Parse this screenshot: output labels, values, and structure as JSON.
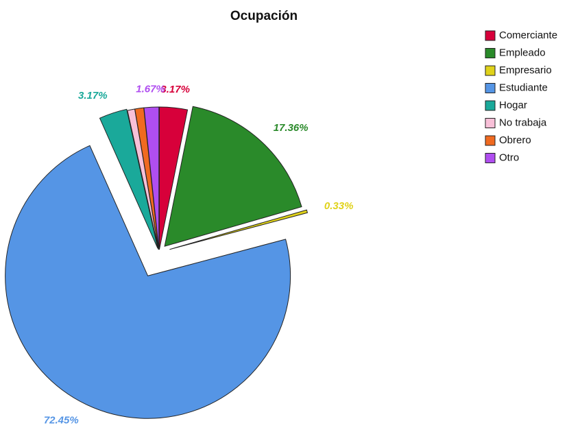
{
  "chart_data": {
    "type": "pie",
    "title": "Ocupación",
    "categories": [
      "Comerciante",
      "Empleado",
      "Empresario",
      "Estudiante",
      "Hogar",
      "No trabaja",
      "Obrero",
      "Otro"
    ],
    "values": [
      3.17,
      17.36,
      0.33,
      72.45,
      3.17,
      0.83,
      1.0,
      1.67
    ],
    "value_labels": [
      "3.17%",
      "17.36%",
      "0.33%",
      "72.45%",
      "3.17%",
      null,
      null,
      "1.67%"
    ],
    "colors": [
      "#d7003a",
      "#2a8a2a",
      "#e0d21a",
      "#5595e5",
      "#1aa99a",
      "#f8c0d8",
      "#f06a20",
      "#b04ef0"
    ],
    "legend": "top-right"
  }
}
